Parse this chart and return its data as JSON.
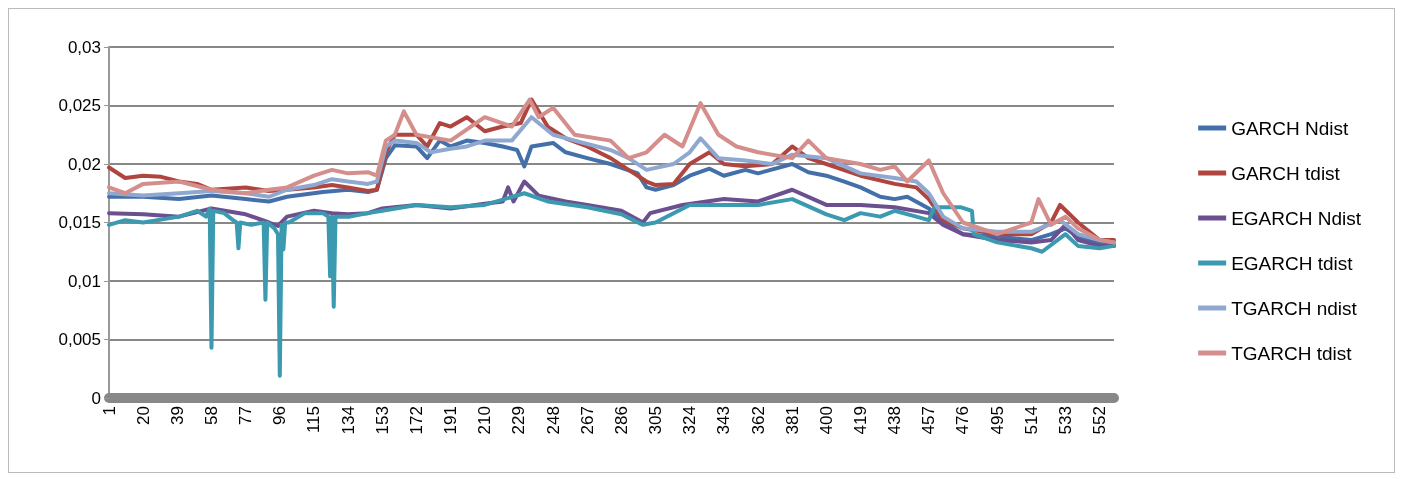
{
  "chart_data": {
    "type": "line",
    "xlim": [
      1,
      560
    ],
    "xticks": [
      1,
      20,
      39,
      58,
      77,
      96,
      115,
      134,
      153,
      172,
      191,
      210,
      229,
      248,
      267,
      286,
      305,
      324,
      343,
      362,
      381,
      400,
      419,
      438,
      457,
      476,
      495,
      514,
      533,
      552
    ],
    "ylim": [
      0,
      0.03
    ],
    "yticks": [
      {
        "value": 0,
        "label": "0"
      },
      {
        "value": 0.005,
        "label": "0,005"
      },
      {
        "value": 0.01,
        "label": "0,01"
      },
      {
        "value": 0.015,
        "label": "0,015"
      },
      {
        "value": 0.02,
        "label": "0,02"
      },
      {
        "value": 0.025,
        "label": "0,025"
      },
      {
        "value": 0.03,
        "label": "0,03"
      }
    ],
    "grid": "y",
    "legend": "right",
    "marker": "none",
    "line_style": "solid",
    "series": [
      {
        "name": "GARCH Ndist",
        "color": "#4470aa",
        "x": [
          1,
          20,
          40,
          58,
          77,
          90,
          100,
          120,
          134,
          145,
          150,
          155,
          160,
          172,
          178,
          185,
          191,
          200,
          210,
          220,
          228,
          232,
          236,
          248,
          255,
          267,
          280,
          295,
          300,
          305,
          315,
          324,
          335,
          343,
          355,
          362,
          381,
          390,
          400,
          410,
          419,
          430,
          438,
          445,
          457,
          465,
          476,
          495,
          514,
          525,
          533,
          540,
          552,
          560
        ],
        "values": [
          0.0172,
          0.0172,
          0.017,
          0.0173,
          0.017,
          0.0168,
          0.0172,
          0.0176,
          0.0178,
          0.0176,
          0.0178,
          0.0205,
          0.0216,
          0.0215,
          0.0205,
          0.022,
          0.0215,
          0.022,
          0.0218,
          0.0215,
          0.0212,
          0.0198,
          0.0215,
          0.0218,
          0.021,
          0.0205,
          0.02,
          0.0192,
          0.018,
          0.0178,
          0.0182,
          0.019,
          0.0196,
          0.019,
          0.0195,
          0.0192,
          0.02,
          0.0193,
          0.019,
          0.0185,
          0.018,
          0.0172,
          0.017,
          0.0172,
          0.0162,
          0.015,
          0.014,
          0.0138,
          0.0135,
          0.014,
          0.0145,
          0.0138,
          0.0133,
          0.0132
        ]
      },
      {
        "name": "GARCH tdist",
        "color": "#b04540",
        "x": [
          1,
          10,
          20,
          30,
          40,
          50,
          58,
          77,
          90,
          100,
          115,
          125,
          134,
          145,
          150,
          155,
          160,
          172,
          178,
          185,
          191,
          200,
          210,
          220,
          230,
          236,
          245,
          255,
          267,
          280,
          290,
          300,
          305,
          315,
          324,
          335,
          343,
          355,
          370,
          381,
          390,
          400,
          419,
          438,
          450,
          457,
          465,
          476,
          495,
          514,
          525,
          530,
          540,
          552,
          560
        ],
        "values": [
          0.0197,
          0.0188,
          0.019,
          0.0189,
          0.0185,
          0.0183,
          0.0178,
          0.018,
          0.0177,
          0.0178,
          0.018,
          0.0182,
          0.018,
          0.0177,
          0.0178,
          0.021,
          0.0225,
          0.0225,
          0.0215,
          0.0235,
          0.0232,
          0.024,
          0.0228,
          0.0232,
          0.0235,
          0.0255,
          0.0232,
          0.0222,
          0.0215,
          0.0205,
          0.0195,
          0.0185,
          0.0182,
          0.0183,
          0.02,
          0.021,
          0.02,
          0.0198,
          0.02,
          0.0215,
          0.0205,
          0.02,
          0.019,
          0.0183,
          0.018,
          0.017,
          0.0152,
          0.0145,
          0.014,
          0.014,
          0.015,
          0.0165,
          0.015,
          0.0135,
          0.0135
        ]
      },
      {
        "name": "EGARCH Ndist",
        "color": "#6b4f8f",
        "x": [
          1,
          20,
          40,
          58,
          77,
          90,
          95,
          100,
          115,
          125,
          134,
          145,
          153,
          172,
          191,
          210,
          220,
          223,
          226,
          232,
          240,
          255,
          267,
          286,
          298,
          302,
          320,
          343,
          362,
          381,
          400,
          419,
          438,
          457,
          465,
          476,
          495,
          514,
          525,
          533,
          540,
          552,
          560
        ],
        "values": [
          0.0158,
          0.0157,
          0.0155,
          0.0162,
          0.0157,
          0.015,
          0.0147,
          0.0155,
          0.016,
          0.0158,
          0.0157,
          0.0158,
          0.0162,
          0.0165,
          0.0162,
          0.0166,
          0.0168,
          0.018,
          0.0168,
          0.0185,
          0.0173,
          0.0168,
          0.0165,
          0.016,
          0.015,
          0.0158,
          0.0165,
          0.017,
          0.0168,
          0.0178,
          0.0165,
          0.0165,
          0.0163,
          0.0158,
          0.0148,
          0.014,
          0.0135,
          0.0133,
          0.0135,
          0.0148,
          0.0135,
          0.013,
          0.013
        ]
      },
      {
        "name": "EGARCH tdist",
        "color": "#3b9ab0",
        "x": [
          1,
          10,
          20,
          40,
          50,
          55,
          57,
          58,
          59,
          65,
          70,
          72,
          73,
          74,
          80,
          87,
          88,
          89,
          93,
          95,
          96,
          97,
          98,
          99,
          101,
          110,
          120,
          123,
          124,
          125,
          126,
          127,
          128,
          135,
          145,
          153,
          172,
          191,
          210,
          232,
          245,
          267,
          286,
          298,
          305,
          324,
          343,
          362,
          381,
          400,
          410,
          419,
          430,
          438,
          450,
          457,
          460,
          475,
          481,
          482,
          495,
          514,
          520,
          533,
          540,
          552,
          560
        ],
        "values": [
          0.0148,
          0.0152,
          0.015,
          0.0155,
          0.016,
          0.0155,
          0.0162,
          0.0043,
          0.016,
          0.0158,
          0.0152,
          0.015,
          0.0128,
          0.015,
          0.0148,
          0.015,
          0.0084,
          0.015,
          0.0145,
          0.014,
          0.0019,
          0.0148,
          0.0127,
          0.015,
          0.015,
          0.0158,
          0.0158,
          0.0155,
          0.0104,
          0.0155,
          0.0078,
          0.0155,
          0.0155,
          0.0155,
          0.0158,
          0.016,
          0.0165,
          0.0163,
          0.0165,
          0.0175,
          0.0168,
          0.0163,
          0.0157,
          0.0148,
          0.015,
          0.0165,
          0.0165,
          0.0165,
          0.017,
          0.0157,
          0.0152,
          0.0158,
          0.0155,
          0.016,
          0.0155,
          0.0152,
          0.0163,
          0.0163,
          0.016,
          0.014,
          0.0133,
          0.0128,
          0.0125,
          0.014,
          0.013,
          0.0128,
          0.013
        ]
      },
      {
        "name": "TGARCH ndist",
        "color": "#8ea8d0",
        "x": [
          1,
          20,
          40,
          58,
          77,
          90,
          100,
          115,
          125,
          134,
          145,
          150,
          155,
          160,
          172,
          180,
          191,
          200,
          210,
          225,
          236,
          248,
          260,
          280,
          290,
          300,
          315,
          324,
          330,
          340,
          355,
          370,
          381,
          400,
          419,
          438,
          450,
          457,
          465,
          476,
          495,
          514,
          530,
          540,
          552,
          560
        ],
        "values": [
          0.0175,
          0.0173,
          0.0175,
          0.0177,
          0.0175,
          0.0172,
          0.0178,
          0.0182,
          0.0187,
          0.0185,
          0.0183,
          0.0185,
          0.0215,
          0.022,
          0.0218,
          0.021,
          0.0213,
          0.0215,
          0.022,
          0.022,
          0.024,
          0.0225,
          0.022,
          0.0212,
          0.0205,
          0.0195,
          0.02,
          0.021,
          0.0222,
          0.0205,
          0.0203,
          0.02,
          0.0208,
          0.0205,
          0.0192,
          0.0188,
          0.0185,
          0.0175,
          0.0155,
          0.0145,
          0.0142,
          0.0142,
          0.0152,
          0.014,
          0.0135,
          0.0133
        ]
      },
      {
        "name": "TGARCH tdist",
        "color": "#d48f8c",
        "x": [
          1,
          10,
          20,
          40,
          58,
          77,
          90,
          100,
          115,
          125,
          134,
          145,
          150,
          155,
          160,
          165,
          172,
          191,
          210,
          225,
          235,
          240,
          248,
          260,
          280,
          290,
          300,
          310,
          320,
          330,
          340,
          350,
          362,
          381,
          390,
          400,
          419,
          430,
          438,
          445,
          457,
          465,
          476,
          495,
          514,
          518,
          525,
          533,
          540,
          552,
          560
        ],
        "values": [
          0.018,
          0.0175,
          0.0183,
          0.0185,
          0.0178,
          0.0175,
          0.0178,
          0.018,
          0.019,
          0.0195,
          0.0192,
          0.0193,
          0.019,
          0.022,
          0.0225,
          0.0245,
          0.0225,
          0.022,
          0.024,
          0.0232,
          0.0255,
          0.024,
          0.0248,
          0.0225,
          0.022,
          0.0205,
          0.021,
          0.0225,
          0.0215,
          0.0252,
          0.0225,
          0.0215,
          0.021,
          0.0205,
          0.022,
          0.0205,
          0.02,
          0.0195,
          0.0198,
          0.0185,
          0.0203,
          0.0175,
          0.015,
          0.014,
          0.015,
          0.017,
          0.0148,
          0.0155,
          0.0145,
          0.0135,
          0.0133
        ]
      }
    ]
  }
}
